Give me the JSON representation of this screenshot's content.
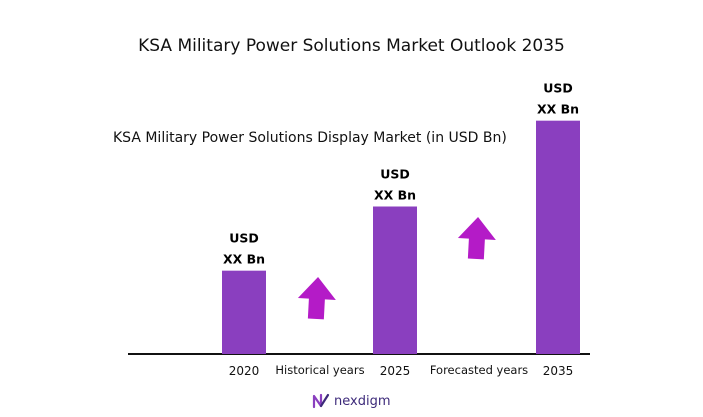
{
  "chart_data": {
    "type": "bar",
    "title": "KSA Military Power Solutions Market Outlook 2035",
    "subtitle": "KSA Military Power Solutions Display Market (in USD Bn)",
    "categories": [
      "2020",
      "2025",
      "2035"
    ],
    "values": [
      1.0,
      1.77,
      2.8
    ],
    "value_labels": [
      [
        "USD",
        "XX Bn"
      ],
      [
        "USD",
        "XX Bn"
      ],
      [
        "USD",
        "XX Bn"
      ]
    ],
    "period_labels": [
      "Historical years",
      "Forecasted years"
    ],
    "ylim": [
      0,
      3.0
    ],
    "grid": false,
    "bar_color": "#8a3fbf",
    "arrow_color": "#b41bc7"
  },
  "brand": {
    "name": "nexdigm",
    "color": "#3d2a7a"
  }
}
